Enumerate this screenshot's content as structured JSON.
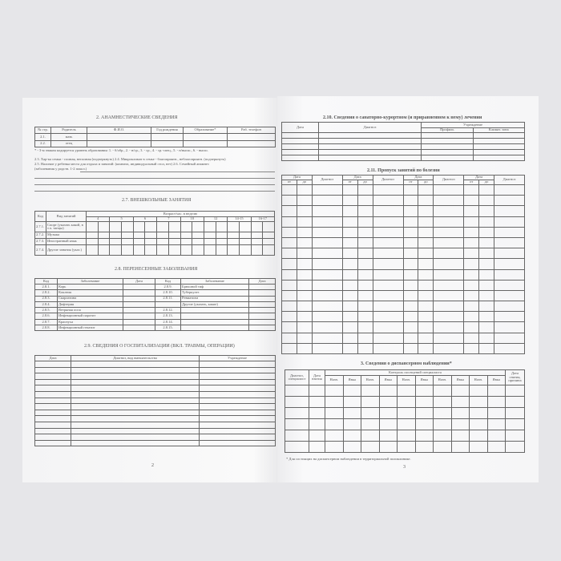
{
  "left_page": {
    "s2_title": "2. АНАМНЕСТИЧЕСКИЕ СВЕДЕНИЯ",
    "s2_headers": [
      "№ стр.",
      "Родитель",
      "Ф.И.О.",
      "Год рождения",
      "Образование*",
      "Раб. телефон"
    ],
    "s2_rows": [
      [
        "2.1.",
        "мать"
      ],
      [
        "2.2.",
        "отец"
      ]
    ],
    "s2_footnote": "* - 3-м знаком кодируется уровень образования: 1. - б/обр., 2. - н/ср., 3. - ср., 4. - ср.-спец., 5. - н/высш., 6. - высш.",
    "s2_text1": "2.3. Хар-ка семьи - полная, неполная (подчеркнуть)  2.4. Микроклимат в семье - благоприятн., неблагоприятн. (подчеркнуть)",
    "s2_text2": "2.5. Наличие у ребенка места для отдыха и занятий: (комната, индивидуальный стол, нет) 2.6. Семейный анамнез",
    "s2_text3": "(заболевания у родств. 1-2 покол.)",
    "s27_title": "2.7. ВНЕШКОЛЬНЫЕ ЗАНЯТИЯ",
    "s27_headers": [
      "Код",
      "Вид занятий",
      "Возраст/час. в неделю"
    ],
    "s27_ages": [
      "4",
      "5",
      "6",
      "7",
      "10",
      "12",
      "14-15",
      "16-17"
    ],
    "s27_rows": [
      [
        "2.7.1.",
        "Спорт (указать какой, в т.ч. танцы)"
      ],
      [
        "2.7.2.",
        "Музыка"
      ],
      [
        "2.7.3.",
        "Иностранный язык"
      ],
      [
        "2.7.4.",
        "Другие занятия (указ.)"
      ]
    ],
    "s28_title": "2.8. ПЕРЕНЕСЕННЫЕ ЗАБОЛЕВАНИЯ",
    "s28_headers": [
      "Код",
      "Заболевание",
      "Дата",
      "Код",
      "Заболевание",
      "Дата"
    ],
    "s28_rows": [
      [
        "2.8.1.",
        "Корь",
        "2.8.9.",
        "Брюшной тиф"
      ],
      [
        "2.8.2.",
        "Коклюш",
        "2.8.10.",
        "Туберкулез"
      ],
      [
        "2.8.3.",
        "Скарлатина",
        "2.8.11.",
        "Ревматизм"
      ],
      [
        "2.8.4.",
        "Дифтерия",
        "",
        "Другие (указать, какие)"
      ],
      [
        "2.8.5.",
        "Ветряная оспа",
        "2.8.12.",
        ""
      ],
      [
        "2.8.6.",
        "Инфекционный паротит",
        "2.8.13.",
        ""
      ],
      [
        "2.8.7.",
        "Краснуха",
        "2.8.14.",
        ""
      ],
      [
        "2.8.8.",
        "Инфекционный гепатит",
        "2.8.15.",
        ""
      ]
    ],
    "s29_title": "2.9. СВЕДЕНИЯ О ГОСПИТАЛИЗАЦИИ (ВКЛ. ТРАВМЫ, ОПЕРАЦИИ)",
    "s29_headers": [
      "Дата",
      "Диагноз, вид вмешательства",
      "Учреждение"
    ],
    "page_number": "2"
  },
  "right_page": {
    "s210_title": "2.10. Сведения о санаторно-курортном (и приравненном к нему) лечении",
    "s210_headers": [
      "Дата",
      "Диагноз",
      "Учреждение",
      "Профиль",
      "Климат. зона"
    ],
    "s211_title": "2.11. Пропуск занятий по болезни",
    "s211_headers": [
      "Дата",
      "Диагноз",
      "от",
      "до"
    ],
    "s3_title": "3. Сведения о диспансерном наблюдении*",
    "s3_headers": [
      "Диагноз, специалист",
      "Дата взятия",
      "Контроль посещений специалиста",
      "Дата снятия, причина"
    ],
    "s3_sub": [
      "Назн.",
      "Явка"
    ],
    "s3_footnote": "* Для состоящих на диспансерном наблюдении в территориальной поликлинике.",
    "page_number": "3"
  }
}
